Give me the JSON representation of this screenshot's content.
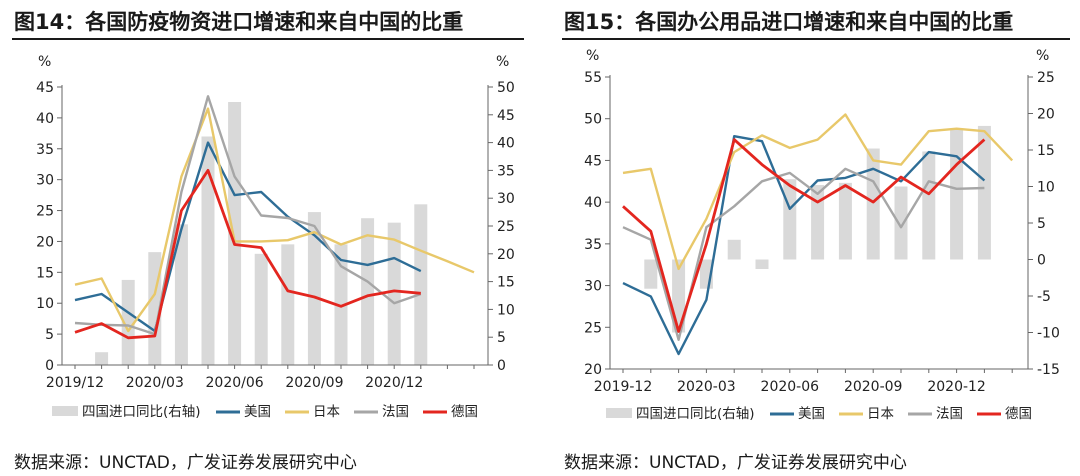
{
  "source_label": "数据来源：UNCTAD，广发证券发展研究中心",
  "chart_data": [
    {
      "type": "bar+line",
      "title": "图14：各国防疫物资进口增速和来自中国的比重",
      "left_axis_unit": "%",
      "right_axis_unit": "%",
      "left_ylim": [
        0,
        45
      ],
      "left_ticks": [
        0,
        5,
        10,
        15,
        20,
        25,
        30,
        35,
        40,
        45
      ],
      "right_ylim": [
        0,
        50
      ],
      "right_ticks": [
        0,
        5,
        10,
        15,
        20,
        25,
        30,
        35,
        40,
        45,
        50
      ],
      "x_tick_labels": [
        "2019/12",
        "2020/03",
        "2020/06",
        "2020/09",
        "2020/12"
      ],
      "x_tick_positions": [
        0,
        3,
        6,
        9,
        12
      ],
      "n_months": 16,
      "bars": {
        "name": "四国进口同比(右轴)",
        "axis": "right",
        "color": "#d9d9d9",
        "values": [
          null,
          2.3,
          15.3,
          20.3,
          25.3,
          41.1,
          47.3,
          20.0,
          21.7,
          27.5,
          21.7,
          26.4,
          25.6,
          28.9,
          null,
          null
        ]
      },
      "series": [
        {
          "name": "美国",
          "color": "#2e6d96",
          "values": [
            10.5,
            11.5,
            8.5,
            5.5,
            22.0,
            36.0,
            27.5,
            28.0,
            24.0,
            21.0,
            17.0,
            16.2,
            17.3,
            15.2,
            null,
            null
          ]
        },
        {
          "name": "日本",
          "color": "#e8c86a",
          "values": [
            13.0,
            14.0,
            5.5,
            11.5,
            30.5,
            41.5,
            20.0,
            20.0,
            20.2,
            21.5,
            19.5,
            21.0,
            20.3,
            18.5,
            16.8,
            15.0
          ]
        },
        {
          "name": "法国",
          "color": "#a6a6a6",
          "values": [
            6.8,
            6.5,
            6.4,
            5.0,
            28.0,
            43.5,
            30.5,
            24.2,
            23.8,
            22.5,
            16.0,
            13.5,
            10.0,
            11.5,
            null,
            null
          ]
        },
        {
          "name": "德国",
          "color": "#e3261f",
          "values": [
            5.3,
            6.7,
            4.4,
            4.7,
            25.0,
            31.5,
            19.5,
            19.0,
            12.0,
            11.0,
            9.5,
            11.2,
            12.0,
            11.6,
            null,
            null
          ]
        }
      ]
    },
    {
      "type": "bar+line",
      "title": "图15：各国办公用品进口增速和来自中国的比重",
      "left_axis_unit": "%",
      "right_axis_unit": "%",
      "left_ylim": [
        20,
        55
      ],
      "left_ticks": [
        20,
        25,
        30,
        35,
        40,
        45,
        50,
        55
      ],
      "right_ylim": [
        -15,
        25
      ],
      "right_ticks": [
        -15,
        -10,
        -5,
        0,
        5,
        10,
        15,
        20,
        25
      ],
      "x_tick_labels": [
        "2019-12",
        "2020-03",
        "2020-06",
        "2020-09",
        "2020-12"
      ],
      "x_tick_positions": [
        0,
        3,
        6,
        9,
        12
      ],
      "n_months": 15,
      "bars": {
        "name": "四国进口同比(右轴)",
        "axis": "right",
        "color": "#d9d9d9",
        "values": [
          null,
          -4.0,
          -10.0,
          -4.0,
          2.7,
          -1.3,
          11.0,
          10.2,
          10.5,
          15.2,
          10.0,
          14.8,
          17.8,
          18.3,
          null
        ]
      },
      "series": [
        {
          "name": "美国",
          "color": "#2e6d96",
          "values": [
            30.3,
            28.7,
            21.8,
            28.3,
            47.9,
            47.3,
            39.2,
            42.6,
            42.9,
            44.0,
            42.5,
            46.0,
            45.5,
            42.6,
            null
          ]
        },
        {
          "name": "日本",
          "color": "#e8c86a",
          "values": [
            43.5,
            44.0,
            32.0,
            38.0,
            46.0,
            48.0,
            46.5,
            47.5,
            50.5,
            45.0,
            44.5,
            48.5,
            48.8,
            48.5,
            45.0
          ]
        },
        {
          "name": "法国",
          "color": "#a6a6a6",
          "values": [
            37.0,
            35.5,
            23.5,
            37.0,
            39.5,
            42.5,
            43.5,
            41.0,
            44.0,
            42.5,
            37.0,
            42.5,
            41.6,
            41.7,
            null
          ]
        },
        {
          "name": "德国",
          "color": "#e3261f",
          "values": [
            39.5,
            36.5,
            24.5,
            35.0,
            47.5,
            44.5,
            42.0,
            40.0,
            42.0,
            40.0,
            43.0,
            41.0,
            44.5,
            47.5,
            null
          ]
        }
      ]
    }
  ]
}
